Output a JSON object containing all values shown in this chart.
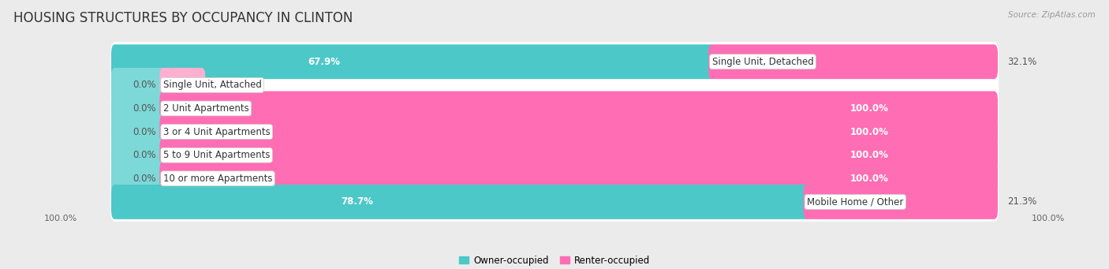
{
  "title": "HOUSING STRUCTURES BY OCCUPANCY IN CLINTON",
  "source": "Source: ZipAtlas.com",
  "categories": [
    "Single Unit, Detached",
    "Single Unit, Attached",
    "2 Unit Apartments",
    "3 or 4 Unit Apartments",
    "5 to 9 Unit Apartments",
    "10 or more Apartments",
    "Mobile Home / Other"
  ],
  "owner_pct": [
    67.9,
    0.0,
    0.0,
    0.0,
    0.0,
    0.0,
    78.7
  ],
  "renter_pct": [
    32.1,
    0.0,
    100.0,
    100.0,
    100.0,
    100.0,
    21.3
  ],
  "owner_color": "#4DC8C8",
  "owner_stub_color": "#7DD8D8",
  "renter_color": "#FF6EB4",
  "renter_stub_color": "#FFB0D0",
  "background_color": "#ebebeb",
  "bar_bg_color": "#ffffff",
  "label_fontsize": 8.5,
  "title_fontsize": 12,
  "source_fontsize": 7.5,
  "axis_label_fontsize": 8,
  "bar_height": 0.68,
  "total_width": 100
}
